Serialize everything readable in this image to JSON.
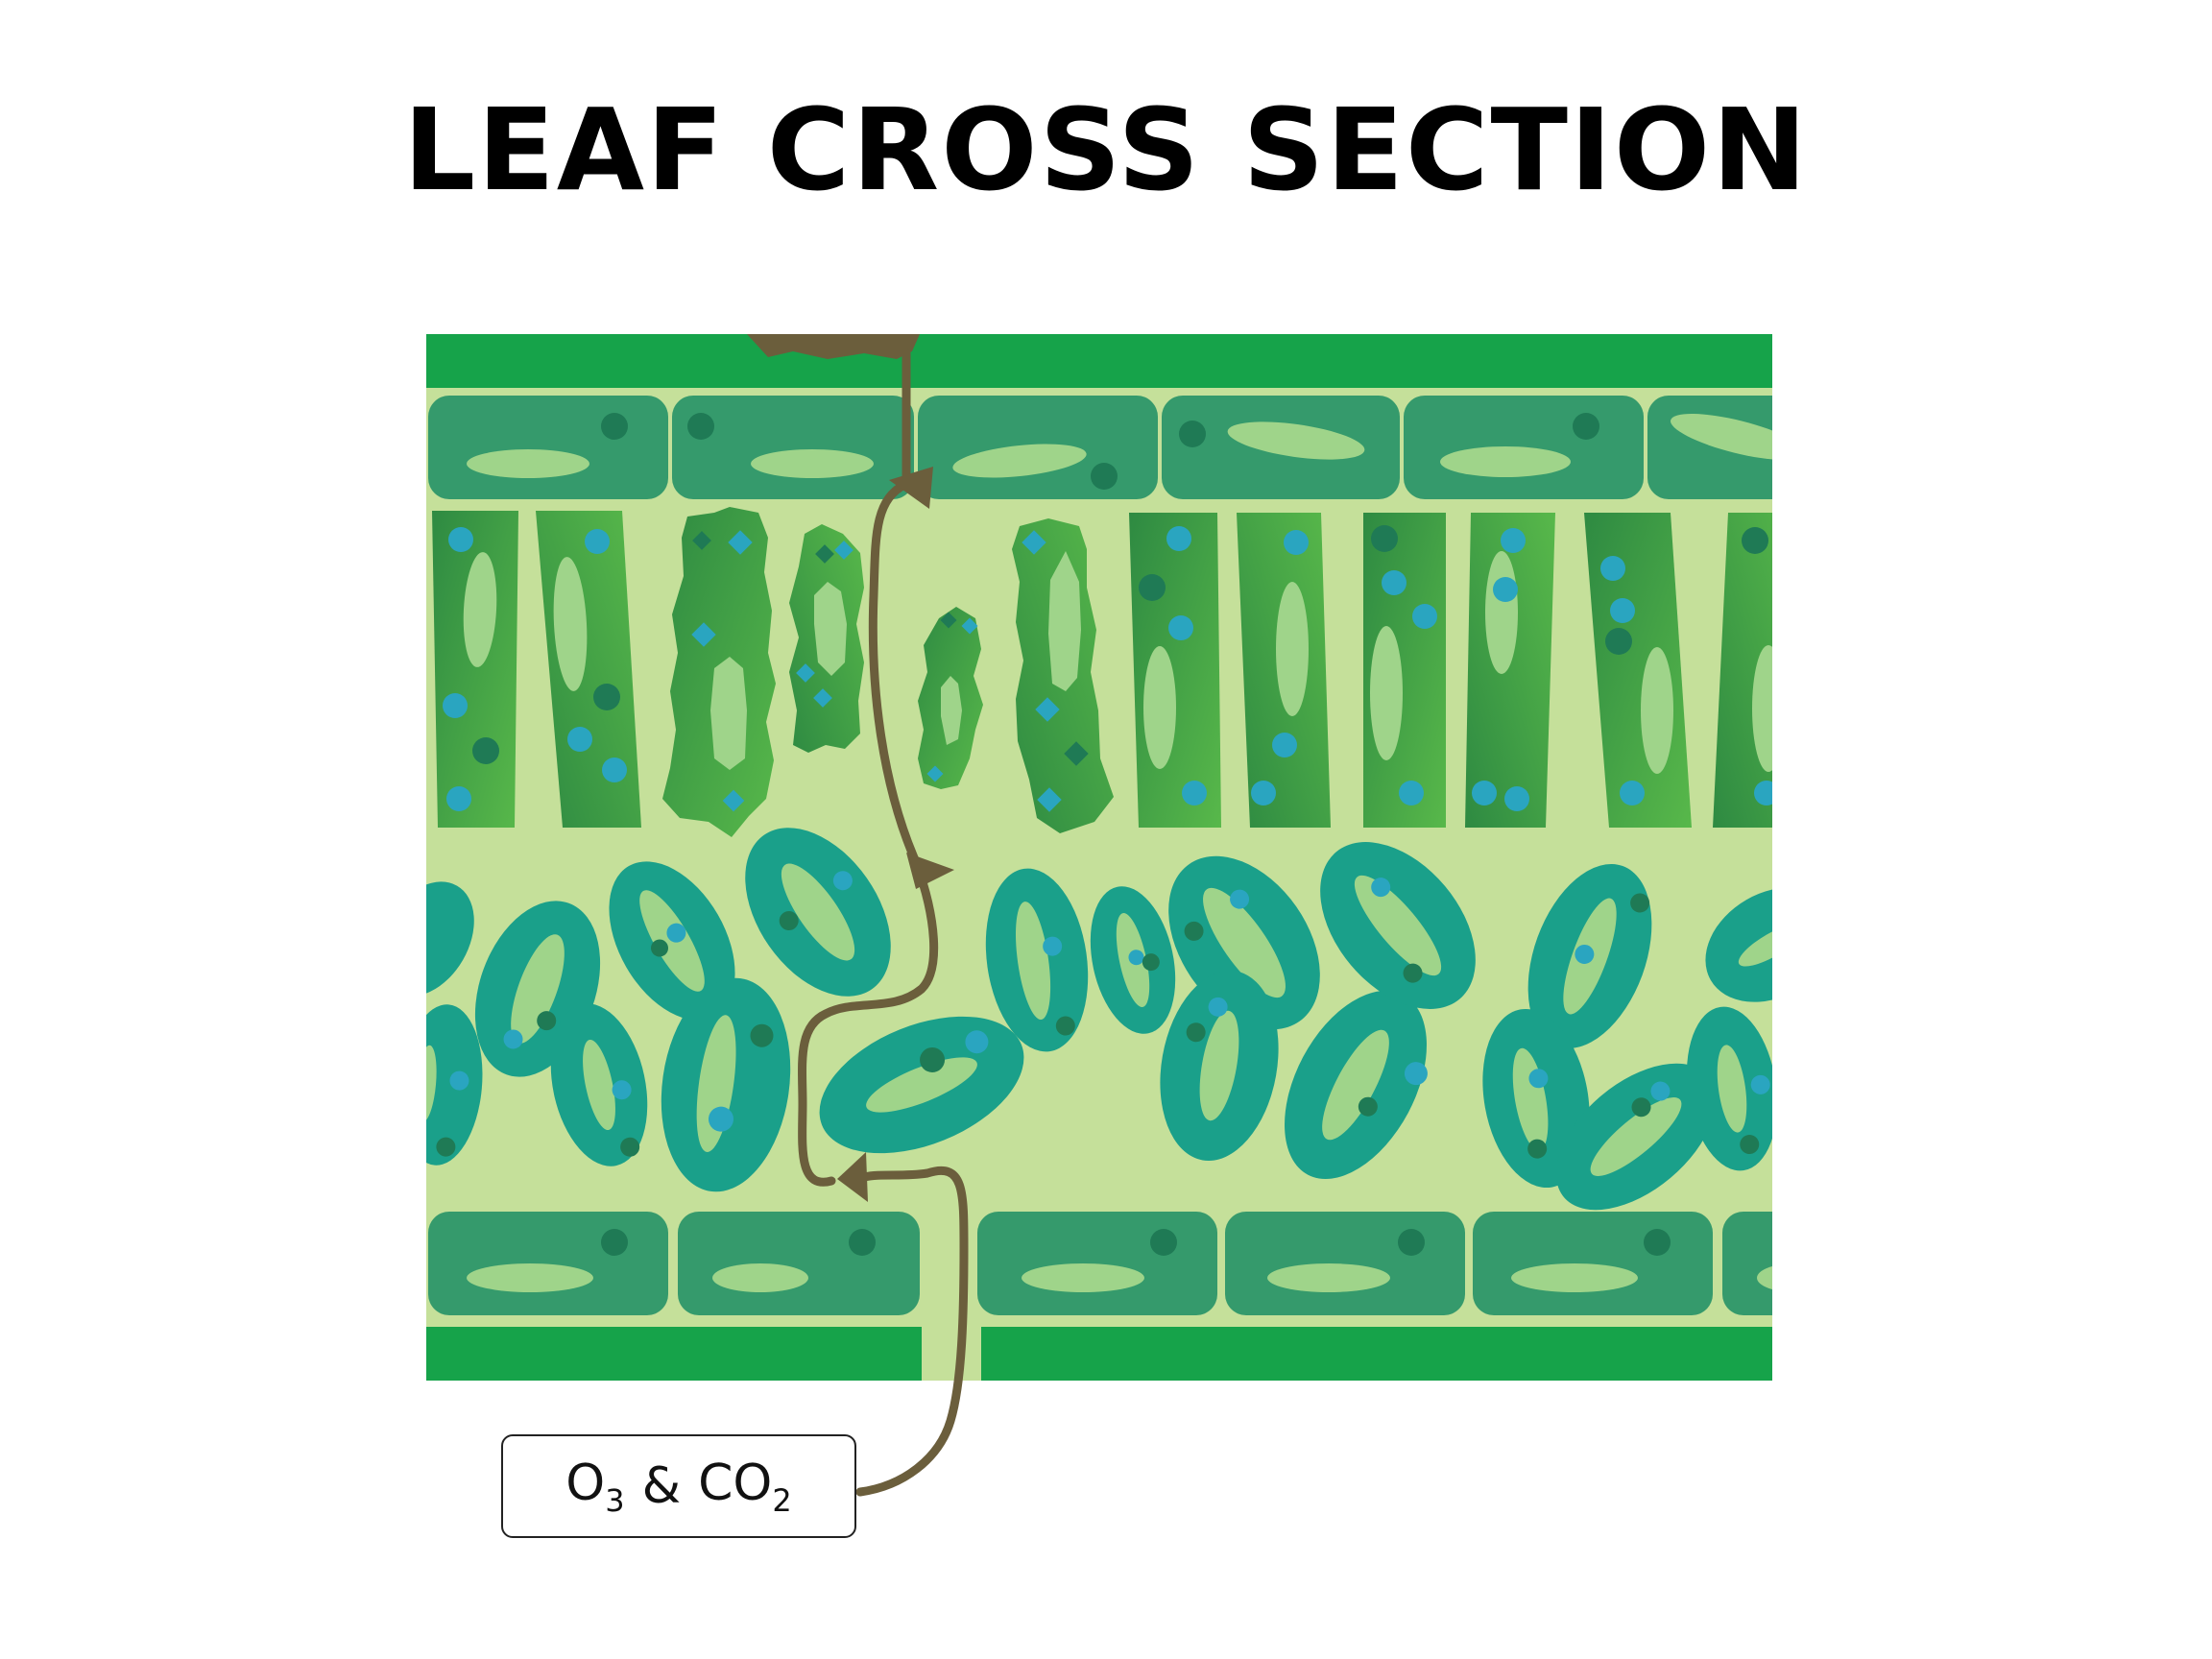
{
  "title": "LEAF CROSS SECTION",
  "label": {
    "gas1": "O",
    "gas1_sub": "3",
    "amp": "&",
    "gas2": "CO",
    "gas2_sub": "2"
  },
  "colors": {
    "epidermis": "#16a34a",
    "epidermal_cell": "#359a6c",
    "cell_vacuole": "#9fd48a",
    "palisade_light": "#58b84a",
    "palisade_dark": "#2e8a42",
    "spongy_cell": "#1aa08a",
    "background_tissue": "#c5e09a",
    "arrow": "#6b5e3c",
    "chloroplast_blue": "#2aa5c0",
    "chloroplast_dark": "#1f7a55"
  }
}
